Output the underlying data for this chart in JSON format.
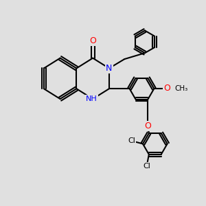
{
  "bg_color": "#e0e0e0",
  "bond_color": "#000000",
  "bond_width": 1.5,
  "atom_colors": {
    "N": "#0000ff",
    "O": "#ff0000",
    "Cl": "#000000",
    "C": "#000000"
  }
}
